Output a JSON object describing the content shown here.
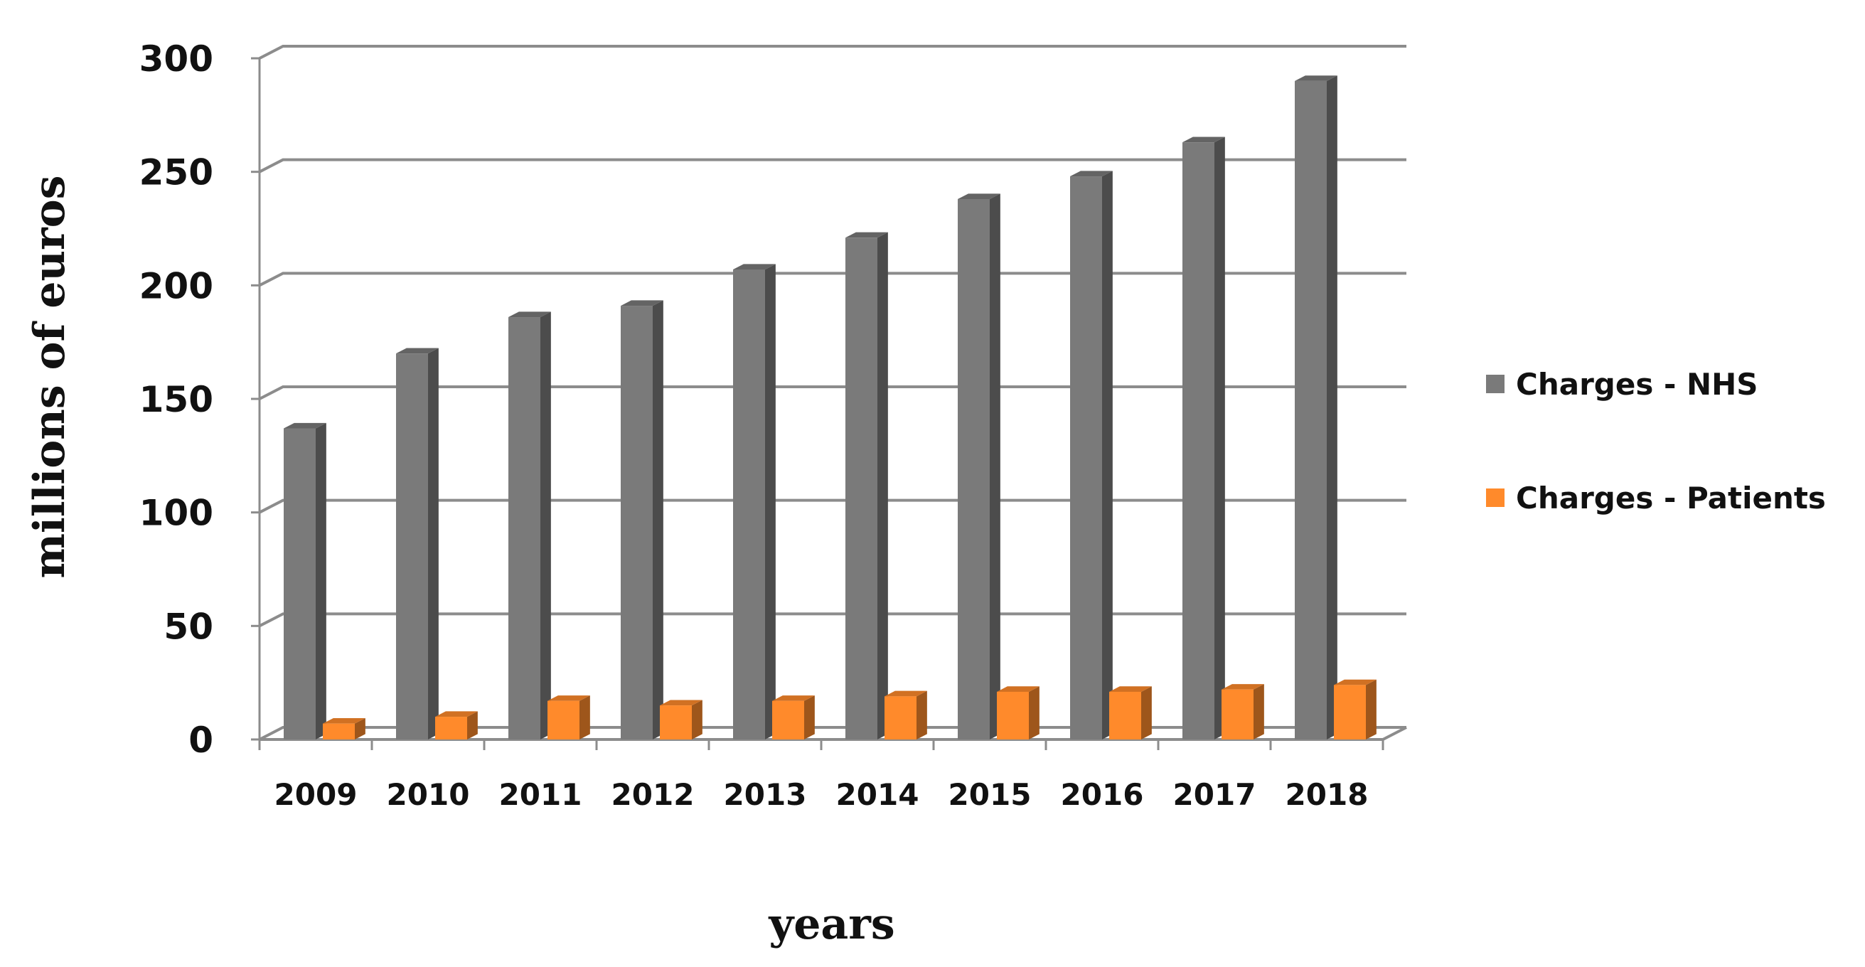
{
  "chart_data": {
    "type": "bar",
    "title": "",
    "xlabel": "years",
    "ylabel": "millions of euros",
    "ylim": [
      0,
      300
    ],
    "yticks": [
      "0",
      "50",
      "100",
      "150",
      "200",
      "250",
      "300"
    ],
    "categories": [
      "2009",
      "2010",
      "2011",
      "2012",
      "2013",
      "2014",
      "2015",
      "2016",
      "2017",
      "2018"
    ],
    "series": [
      {
        "name": "Charges - NHS",
        "color": "#7a7a7a",
        "values": [
          137,
          170,
          186,
          191,
          207,
          221,
          238,
          248,
          263,
          290
        ]
      },
      {
        "name": "Charges - Patients",
        "color": "#ff8a2b",
        "values": [
          7,
          10,
          17,
          15,
          17,
          19,
          21,
          21,
          22,
          24
        ]
      }
    ],
    "grid": true,
    "legend": "right",
    "style": "3d-column"
  }
}
